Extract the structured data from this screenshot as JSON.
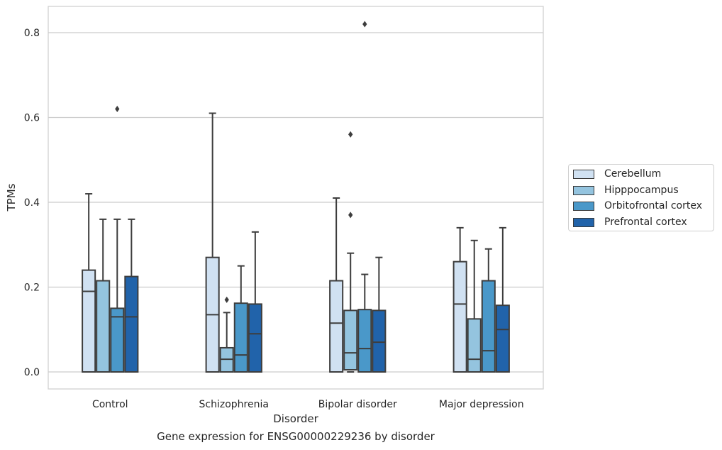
{
  "caption": "Gene expression for ENSG00000229236 by disorder",
  "chart_data": {
    "type": "box",
    "xlabel": "Disorder",
    "ylabel": "TPMs",
    "ylim": [
      -0.04,
      0.86
    ],
    "yticks": [
      0.0,
      0.2,
      0.4,
      0.6,
      0.8
    ],
    "ytick_labels": [
      "0.0",
      "0.2",
      "0.4",
      "0.6",
      "0.8"
    ],
    "grid": "horizontal",
    "legend_position": "right",
    "categories": [
      "Control",
      "Schizophrenia",
      "Bipolar disorder",
      "Major depression"
    ],
    "series": [
      {
        "name": "Cerebellum",
        "color": "#d0e1f2",
        "boxes": [
          {
            "min": 0.0,
            "q1": 0.0,
            "median": 0.19,
            "q3": 0.24,
            "max": 0.42,
            "outliers": []
          },
          {
            "min": 0.0,
            "q1": 0.0,
            "median": 0.135,
            "q3": 0.27,
            "max": 0.61,
            "outliers": []
          },
          {
            "min": 0.0,
            "q1": 0.0,
            "median": 0.115,
            "q3": 0.215,
            "max": 0.41,
            "outliers": []
          },
          {
            "min": 0.0,
            "q1": 0.0,
            "median": 0.16,
            "q3": 0.26,
            "max": 0.34,
            "outliers": []
          }
        ]
      },
      {
        "name": "Hipppocampus",
        "color": "#94c4df",
        "boxes": [
          {
            "min": 0.0,
            "q1": 0.0,
            "median": 0.0,
            "q3": 0.215,
            "max": 0.36,
            "outliers": []
          },
          {
            "min": 0.0,
            "q1": 0.0,
            "median": 0.03,
            "q3": 0.057,
            "max": 0.14,
            "outliers": [
              0.17
            ]
          },
          {
            "min": 0.0,
            "q1": 0.005,
            "median": 0.045,
            "q3": 0.145,
            "max": 0.28,
            "outliers": [
              0.37,
              0.56
            ]
          },
          {
            "min": 0.0,
            "q1": 0.0,
            "median": 0.03,
            "q3": 0.125,
            "max": 0.31,
            "outliers": []
          }
        ]
      },
      {
        "name": "Orbitofrontal cortex",
        "color": "#4a98c9",
        "boxes": [
          {
            "min": 0.0,
            "q1": 0.0,
            "median": 0.13,
            "q3": 0.15,
            "max": 0.36,
            "outliers": [
              0.62
            ]
          },
          {
            "min": 0.0,
            "q1": 0.0,
            "median": 0.04,
            "q3": 0.162,
            "max": 0.25,
            "outliers": []
          },
          {
            "min": 0.0,
            "q1": 0.0,
            "median": 0.055,
            "q3": 0.147,
            "max": 0.23,
            "outliers": [
              0.82
            ]
          },
          {
            "min": 0.0,
            "q1": 0.0,
            "median": 0.05,
            "q3": 0.215,
            "max": 0.29,
            "outliers": []
          }
        ]
      },
      {
        "name": "Prefrontal cortex",
        "color": "#2163aa",
        "boxes": [
          {
            "min": 0.0,
            "q1": 0.0,
            "median": 0.13,
            "q3": 0.225,
            "max": 0.36,
            "outliers": []
          },
          {
            "min": 0.0,
            "q1": 0.0,
            "median": 0.09,
            "q3": 0.16,
            "max": 0.33,
            "outliers": []
          },
          {
            "min": 0.0,
            "q1": 0.0,
            "median": 0.07,
            "q3": 0.145,
            "max": 0.27,
            "outliers": []
          },
          {
            "min": 0.0,
            "q1": 0.0,
            "median": 0.1,
            "q3": 0.157,
            "max": 0.34,
            "outliers": []
          }
        ]
      }
    ]
  }
}
